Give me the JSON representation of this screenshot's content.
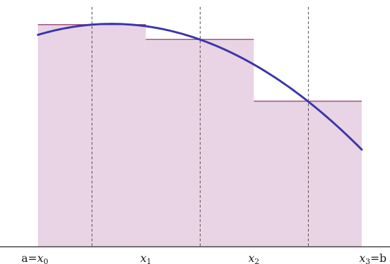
{
  "figure": {
    "x_labels": [
      {
        "prefix": "a=",
        "var": "x",
        "sub": "0",
        "suffix": ""
      },
      {
        "prefix": "",
        "var": "x",
        "sub": "1",
        "suffix": ""
      },
      {
        "prefix": "",
        "var": "x",
        "sub": "2",
        "suffix": ""
      },
      {
        "prefix": "",
        "var": "x",
        "sub": "3",
        "suffix": "=b"
      }
    ],
    "partition": [
      0,
      1,
      2,
      3
    ],
    "sample_points": [
      0.5,
      1.5,
      2.5
    ],
    "rectangle_heights": [
      0.9,
      0.84,
      0.59
    ],
    "curve": "parabola",
    "colors": {
      "rectangle_fill": "#e8d4e4",
      "rectangle_edge": "#a05080",
      "curve": "#3b36a8",
      "midline": "#555555",
      "axis": "#222222"
    }
  }
}
